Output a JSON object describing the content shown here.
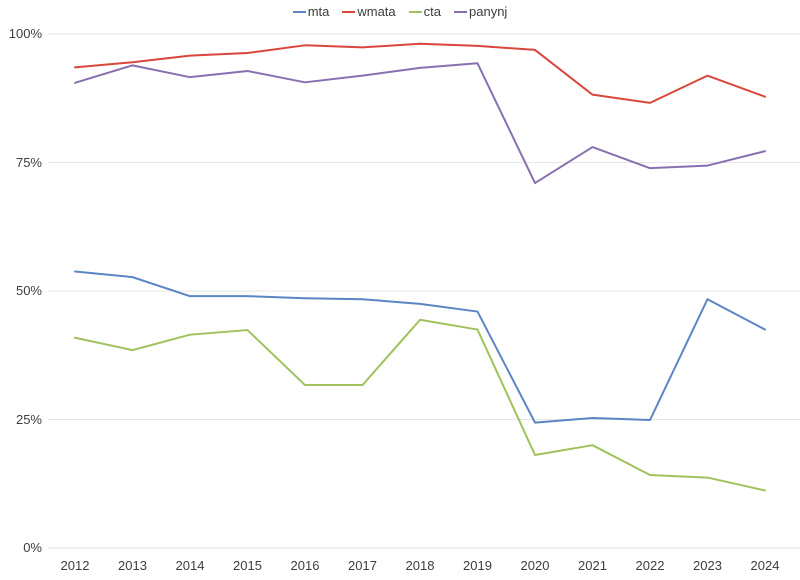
{
  "chart_data": {
    "type": "line",
    "title": "",
    "xlabel": "",
    "ylabel": "",
    "x": [
      "2012",
      "2013",
      "2014",
      "2015",
      "2016",
      "2017",
      "2018",
      "2019",
      "2020",
      "2021",
      "2022",
      "2023",
      "2024"
    ],
    "series": [
      {
        "name": "mta",
        "color": "#5b85c4",
        "values": [
          53.8,
          52.7,
          49.0,
          49.0,
          48.6,
          48.4,
          47.5,
          46.0,
          24.4,
          25.3,
          24.9,
          48.4,
          42.5
        ]
      },
      {
        "name": "wmata",
        "color": "#d9463b",
        "values": [
          93.5,
          94.5,
          95.8,
          96.3,
          97.8,
          97.4,
          98.1,
          97.7,
          96.9,
          88.2,
          86.6,
          91.9,
          87.8
        ]
      },
      {
        "name": "cta",
        "color": "#9fc25c",
        "values": [
          40.9,
          38.5,
          41.5,
          42.4,
          31.7,
          31.7,
          44.4,
          42.5,
          18.1,
          20.0,
          14.2,
          13.7,
          11.2
        ]
      },
      {
        "name": "panynj",
        "color": "#8870b0",
        "values": [
          90.5,
          93.9,
          91.6,
          92.8,
          90.6,
          91.9,
          93.4,
          94.3,
          71.0,
          78.0,
          73.9,
          74.4,
          77.2
        ]
      }
    ],
    "ylim": [
      0,
      100
    ],
    "yticks": [
      {
        "value": 0,
        "label": "0%"
      },
      {
        "value": 25,
        "label": "25%"
      },
      {
        "value": 50,
        "label": "50%"
      },
      {
        "value": 75,
        "label": "75%"
      },
      {
        "value": 100,
        "label": "100%"
      }
    ],
    "grid": "horizontal",
    "legend_position": "top-center"
  },
  "colors": {
    "background": "#ffffff",
    "gridline": "#e6e6e6",
    "gridline_zero": "#dcdcdc",
    "axis_text": "#3d3d3d"
  }
}
